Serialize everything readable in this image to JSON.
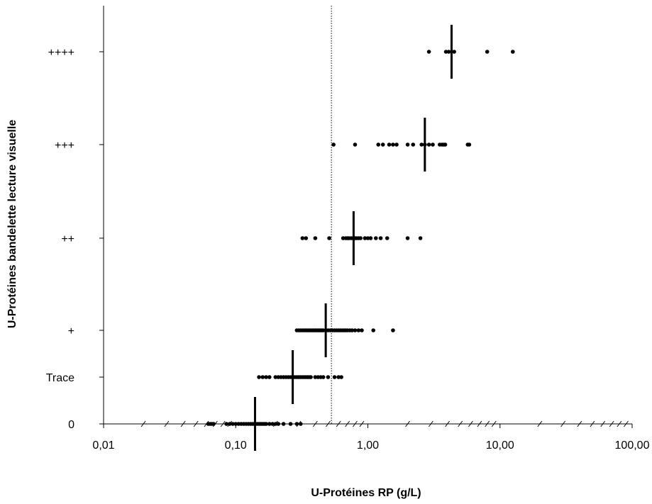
{
  "chart_data": {
    "type": "scatter",
    "title": "",
    "xlabel": "U-Protéines RP (g/L)",
    "ylabel": "U-Protéines bandelette lecture visuelle",
    "x_scale": "log",
    "xlim": [
      0.01,
      100
    ],
    "x_ticks": [
      {
        "value": 0.01,
        "label": "0,01"
      },
      {
        "value": 0.1,
        "label": "0,10"
      },
      {
        "value": 1,
        "label": "1,00"
      },
      {
        "value": 10,
        "label": "10,00"
      },
      {
        "value": 100,
        "label": "100,00"
      }
    ],
    "categories": [
      "0",
      "Trace",
      "+",
      "++",
      "+++",
      "++++"
    ],
    "grid": false,
    "reference_line_x": 0.53,
    "points": [
      {
        "category": "0",
        "x": [
          0.062,
          0.064,
          0.066,
          0.068,
          0.085,
          0.09,
          0.095,
          0.1,
          0.105,
          0.11,
          0.115,
          0.12,
          0.125,
          0.13,
          0.135,
          0.14,
          0.145,
          0.15,
          0.155,
          0.16,
          0.165,
          0.17,
          0.18,
          0.19,
          0.2,
          0.21,
          0.23,
          0.26,
          0.29,
          0.31
        ]
      },
      {
        "category": "Trace",
        "x": [
          0.15,
          0.16,
          0.17,
          0.18,
          0.2,
          0.21,
          0.22,
          0.23,
          0.24,
          0.25,
          0.26,
          0.27,
          0.28,
          0.29,
          0.3,
          0.31,
          0.32,
          0.33,
          0.34,
          0.35,
          0.36,
          0.37,
          0.4,
          0.42,
          0.44,
          0.46,
          0.5,
          0.56,
          0.6,
          0.63
        ]
      },
      {
        "category": "+",
        "x": [
          0.29,
          0.3,
          0.31,
          0.32,
          0.33,
          0.34,
          0.35,
          0.36,
          0.37,
          0.38,
          0.39,
          0.4,
          0.41,
          0.42,
          0.43,
          0.44,
          0.45,
          0.46,
          0.48,
          0.5,
          0.52,
          0.54,
          0.56,
          0.58,
          0.6,
          0.62,
          0.64,
          0.66,
          0.68,
          0.7,
          0.73,
          0.76,
          0.8,
          0.85,
          0.9,
          1.1,
          1.55
        ]
      },
      {
        "category": "++",
        "x": [
          0.32,
          0.34,
          0.4,
          0.51,
          0.65,
          0.68,
          0.7,
          0.72,
          0.75,
          0.78,
          0.8,
          0.82,
          0.85,
          0.88,
          0.95,
          1.0,
          1.05,
          1.15,
          1.25,
          1.4,
          2.0,
          2.5
        ]
      },
      {
        "category": "+++",
        "x": [
          0.55,
          0.8,
          1.2,
          1.3,
          1.45,
          1.55,
          1.65,
          2.0,
          2.2,
          2.55,
          2.7,
          2.9,
          3.1,
          3.5,
          3.65,
          3.75,
          3.85,
          5.7,
          5.85
        ]
      },
      {
        "category": "++++",
        "x": [
          2.9,
          3.9,
          4.1,
          4.5,
          8.0,
          12.5
        ]
      }
    ],
    "medians": [
      {
        "category": "0",
        "x": 0.14
      },
      {
        "category": "Trace",
        "x": 0.27
      },
      {
        "category": "+",
        "x": 0.48
      },
      {
        "category": "++",
        "x": 0.78
      },
      {
        "category": "+++",
        "x": 2.7
      },
      {
        "category": "++++",
        "x": 4.3
      }
    ]
  }
}
